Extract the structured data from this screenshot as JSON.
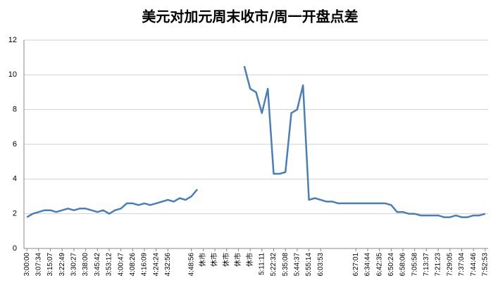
{
  "chart_data": {
    "type": "line",
    "title": "美元对加元周末收市/周一开盘点差",
    "categories": [
      "3:00:00",
      null,
      "3:07:34",
      null,
      "3:15:07",
      null,
      "3:22:49",
      null,
      "3:30:27",
      null,
      "3:38:00",
      null,
      "3:45:42",
      null,
      "3:53:12",
      null,
      "4:00:47",
      null,
      "4:08:26",
      null,
      "4:16:09",
      null,
      "4:24:24",
      null,
      "4:32:56",
      null,
      null,
      null,
      "4:48:56",
      null,
      "休市",
      null,
      "休市",
      null,
      "休市",
      null,
      "休市",
      null,
      "休市",
      null,
      "5:11:11",
      null,
      "5:22:32",
      null,
      "5:35:08",
      null,
      "5:44:37",
      null,
      "5:55:14",
      null,
      "6:03:53",
      null,
      null,
      null,
      null,
      null,
      "6:27:01",
      null,
      "6:34:44",
      null,
      "6:42:35",
      null,
      "6:50:24",
      null,
      "6:58:06",
      null,
      "7:05:58",
      null,
      "7:13:37",
      null,
      "7:21:23",
      null,
      "7:29:05",
      null,
      "7:37:04",
      null,
      "7:44:46",
      null,
      "7:52:53"
    ],
    "series": [
      {
        "color": "#4a7ebb",
        "values": [
          1.8,
          2.0,
          2.1,
          2.2,
          2.2,
          2.1,
          2.2,
          2.3,
          2.2,
          2.3,
          2.3,
          2.2,
          2.1,
          2.2,
          2.0,
          2.2,
          2.3,
          2.6,
          2.6,
          2.5,
          2.6,
          2.5,
          2.6,
          2.7,
          2.8,
          2.7,
          2.9,
          2.8,
          3.0,
          3.4,
          null,
          null,
          null,
          null,
          null,
          null,
          null,
          10.5,
          9.2,
          9.0,
          7.8,
          9.2,
          4.3,
          4.3,
          4.4,
          7.8,
          8.0,
          9.4,
          2.8,
          2.9,
          2.8,
          2.7,
          2.7,
          2.6,
          2.6,
          2.6,
          2.6,
          2.6,
          2.6,
          2.6,
          2.6,
          2.6,
          2.5,
          2.1,
          2.1,
          2.0,
          2.0,
          1.9,
          1.9,
          1.9,
          1.9,
          1.8,
          1.8,
          1.9,
          1.8,
          1.8,
          1.9,
          1.9,
          2.0
        ]
      }
    ],
    "ylim": [
      0,
      12
    ],
    "yticks": [
      0,
      2,
      4,
      6,
      8,
      10,
      12
    ],
    "grid": true
  }
}
